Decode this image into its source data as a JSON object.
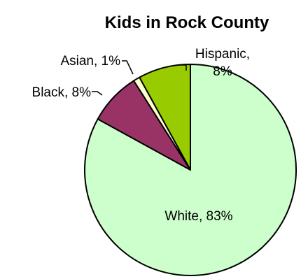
{
  "chart_data": {
    "type": "pie",
    "title": "Kids in Rock County",
    "slices": [
      {
        "label": "White",
        "value": 83,
        "display": "White, 83%",
        "color": "#ccffcc"
      },
      {
        "label": "Black",
        "value": 8,
        "display": "Black, 8%",
        "color": "#993366"
      },
      {
        "label": "Asian",
        "value": 1,
        "display": "Asian, 1%",
        "color": "#ffffcc"
      },
      {
        "label": "Hispanic",
        "value": 8,
        "display_lines": [
          "Hispanic,",
          "8%"
        ],
        "color": "#99cc00"
      }
    ]
  }
}
